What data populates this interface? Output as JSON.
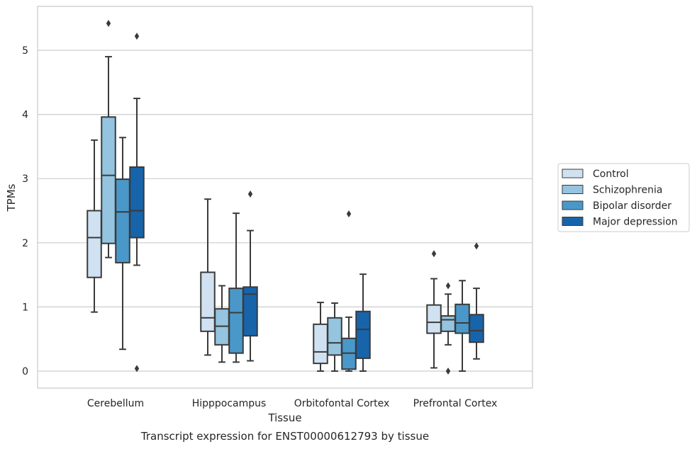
{
  "chart_data": {
    "type": "box",
    "caption": "Transcript expression for ENST00000612793 by tissue",
    "xlabel": "Tissue",
    "ylabel": "TPMs",
    "ylim": [
      -0.25,
      5.7
    ],
    "yticks": [
      0,
      1,
      2,
      3,
      4,
      5
    ],
    "grid": "horizontal",
    "legend_position": "right",
    "categories": [
      "Cerebellum",
      "Hipppocampus",
      "Orbitofontal Cortex",
      "Prefrontal Cortex"
    ],
    "series": [
      {
        "name": "Control",
        "color": "#d0e1f2",
        "boxes": [
          {
            "whislo": 0.92,
            "q1": 1.46,
            "med": 2.08,
            "q3": 2.5,
            "whishi": 3.6,
            "fliers": []
          },
          {
            "whislo": 0.25,
            "q1": 0.62,
            "med": 0.83,
            "q3": 1.54,
            "whishi": 2.68,
            "fliers": []
          },
          {
            "whislo": 0.0,
            "q1": 0.12,
            "med": 0.3,
            "q3": 0.73,
            "whishi": 1.07,
            "fliers": []
          },
          {
            "whislo": 0.05,
            "q1": 0.59,
            "med": 0.76,
            "q3": 1.03,
            "whishi": 1.44,
            "fliers": [
              1.83
            ]
          }
        ]
      },
      {
        "name": "Schizophrenia",
        "color": "#94c4df",
        "boxes": [
          {
            "whislo": 1.77,
            "q1": 1.99,
            "med": 3.05,
            "q3": 3.96,
            "whishi": 4.9,
            "fliers": [
              5.42
            ]
          },
          {
            "whislo": 0.14,
            "q1": 0.41,
            "med": 0.7,
            "q3": 0.97,
            "whishi": 1.33,
            "fliers": []
          },
          {
            "whislo": 0.0,
            "q1": 0.25,
            "med": 0.44,
            "q3": 0.83,
            "whishi": 1.06,
            "fliers": []
          },
          {
            "whislo": 0.41,
            "q1": 0.62,
            "med": 0.8,
            "q3": 0.86,
            "whishi": 1.2,
            "fliers": [
              1.33,
              0.0
            ]
          }
        ]
      },
      {
        "name": "Bipolar disorder",
        "color": "#4a98c9",
        "boxes": [
          {
            "whislo": 0.34,
            "q1": 1.69,
            "med": 2.48,
            "q3": 2.99,
            "whishi": 3.64,
            "fliers": []
          },
          {
            "whislo": 0.14,
            "q1": 0.28,
            "med": 0.91,
            "q3": 1.29,
            "whishi": 2.46,
            "fliers": []
          },
          {
            "whislo": 0.0,
            "q1": 0.03,
            "med": 0.28,
            "q3": 0.51,
            "whishi": 0.84,
            "fliers": [
              2.45
            ]
          },
          {
            "whislo": 0.0,
            "q1": 0.59,
            "med": 0.75,
            "q3": 1.04,
            "whishi": 1.41,
            "fliers": []
          }
        ]
      },
      {
        "name": "Major depression",
        "color": "#1764ab",
        "boxes": [
          {
            "whislo": 1.65,
            "q1": 2.08,
            "med": 2.5,
            "q3": 3.18,
            "whishi": 4.25,
            "fliers": [
              5.22,
              0.04
            ]
          },
          {
            "whislo": 0.16,
            "q1": 0.55,
            "med": 1.2,
            "q3": 1.31,
            "whishi": 2.19,
            "fliers": [
              2.76
            ]
          },
          {
            "whislo": 0.0,
            "q1": 0.2,
            "med": 0.65,
            "q3": 0.93,
            "whishi": 1.51,
            "fliers": []
          },
          {
            "whislo": 0.19,
            "q1": 0.45,
            "med": 0.63,
            "q3": 0.88,
            "whishi": 1.29,
            "fliers": [
              1.95
            ]
          }
        ]
      }
    ]
  },
  "colors": {
    "edge": "#3a3a3a",
    "grid": "#cccccc",
    "axes_border": "#cccccc",
    "legend_border": "#cccccc"
  }
}
